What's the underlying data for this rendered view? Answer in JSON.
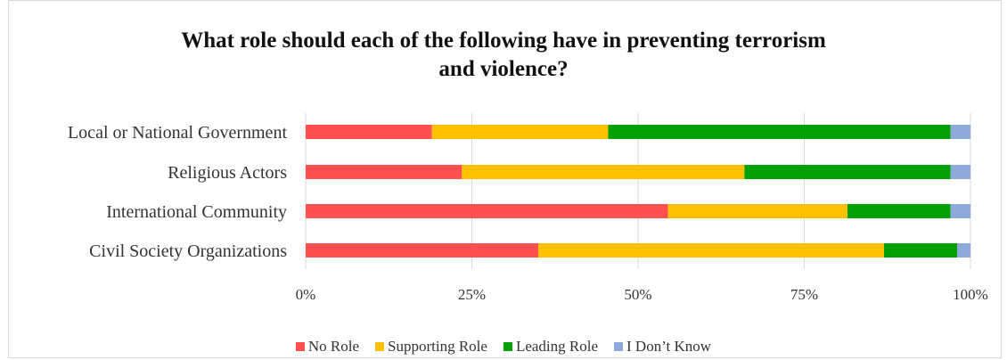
{
  "chart_data": {
    "type": "bar",
    "orientation": "horizontal",
    "stacked": "percent",
    "title": "What role should each of the following have in preventing terrorism and violence?",
    "title_lines": [
      "What role should each of the following have in preventing terrorism",
      "and violence?"
    ],
    "categories": [
      "Local or National Government",
      "Religious Actors",
      "International Community",
      "Civil Society Organizations"
    ],
    "series": [
      {
        "name": "No Role",
        "color": "#ff5050",
        "values": [
          19,
          23.5,
          54.5,
          35
        ]
      },
      {
        "name": "Supporting Role",
        "color": "#ffc000",
        "values": [
          26.5,
          42.5,
          27,
          52
        ]
      },
      {
        "name": "Leading Role",
        "color": "#00a000",
        "values": [
          51.5,
          31,
          15.5,
          11
        ]
      },
      {
        "name": "I Don’t Know",
        "color": "#8eaadb",
        "values": [
          3,
          3,
          3,
          2
        ]
      }
    ],
    "xlim": [
      0,
      100
    ],
    "x_ticks": [
      "0%",
      "25%",
      "50%",
      "75%",
      "100%"
    ],
    "grid": "vertical",
    "legend_position": "bottom"
  }
}
